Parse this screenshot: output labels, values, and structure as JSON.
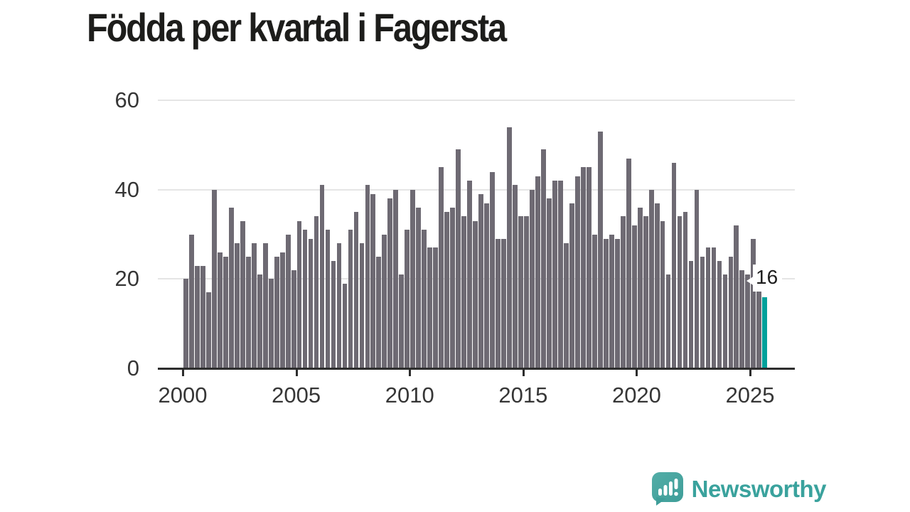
{
  "page_title": "Födda per kvartal i Fagersta",
  "chart_data": {
    "type": "bar",
    "title": "Födda per kvartal i Fagersta",
    "x_unit": "quarter",
    "start_year": 2000,
    "start_quarter": 1,
    "end_label": "2025 Q3",
    "values": [
      20,
      30,
      23,
      23,
      17,
      40,
      26,
      25,
      36,
      28,
      33,
      25,
      28,
      21,
      28,
      20,
      25,
      26,
      30,
      22,
      33,
      31,
      29,
      34,
      41,
      31,
      24,
      28,
      19,
      31,
      35,
      28,
      41,
      39,
      25,
      30,
      38,
      40,
      21,
      31,
      40,
      36,
      31,
      27,
      27,
      45,
      35,
      36,
      49,
      34,
      42,
      33,
      39,
      37,
      44,
      29,
      29,
      54,
      41,
      34,
      34,
      40,
      43,
      49,
      38,
      42,
      42,
      28,
      37,
      43,
      45,
      45,
      30,
      53,
      29,
      30,
      29,
      34,
      47,
      32,
      36,
      34,
      40,
      37,
      33,
      21,
      46,
      34,
      35,
      24,
      40,
      25,
      27,
      27,
      24,
      21,
      25,
      32,
      22,
      21,
      29,
      18,
      16
    ],
    "highlighted_index": 102,
    "highlight_label": "16",
    "x_tick_labels": [
      "2000",
      "2005",
      "2010",
      "2015",
      "2020",
      "2025"
    ],
    "y_ticks": [
      0,
      20,
      40,
      60
    ],
    "ylim": [
      0,
      60
    ],
    "grid": "horizontal",
    "legend": "none",
    "bar_color": "#6e6a73",
    "highlight_color": "#00a19b",
    "gridline_color": "#e5e5e5",
    "axis_color": "#2d2d2d"
  },
  "footer": {
    "brand": "Newsworthy",
    "logo_icon": "speech-bubble-bar-chart-icon",
    "brand_color": "#3aa29d"
  }
}
